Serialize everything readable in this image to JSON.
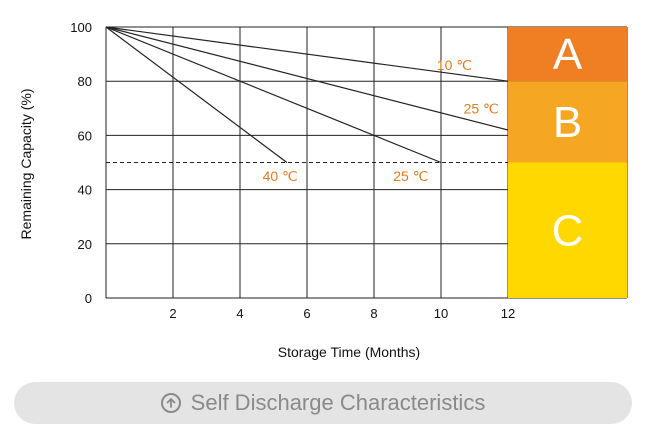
{
  "chart_data": {
    "type": "line",
    "xlabel": "Storage Time (Months)",
    "ylabel": "Remaining Capacity (%)",
    "xlim": [
      0,
      12
    ],
    "ylim": [
      0,
      100
    ],
    "x_ticks": [
      "2",
      "4",
      "6",
      "8",
      "10",
      "12"
    ],
    "y_ticks": [
      "0",
      "20",
      "40",
      "60",
      "80",
      "100"
    ],
    "grid": true,
    "reference_line": {
      "y": 50,
      "style": "dashed"
    },
    "series": [
      {
        "name": "10 ℃",
        "points": [
          [
            0,
            100
          ],
          [
            12,
            80
          ]
        ]
      },
      {
        "name": "25 ℃",
        "points": [
          [
            0,
            100
          ],
          [
            12,
            62
          ]
        ]
      },
      {
        "name": "25 ℃",
        "points": [
          [
            0,
            100
          ],
          [
            10,
            50
          ]
        ]
      },
      {
        "name": "40 ℃",
        "points": [
          [
            0,
            100
          ],
          [
            5.4,
            50
          ]
        ]
      }
    ],
    "annotations": [
      {
        "text": "10 ℃",
        "x": 10.4,
        "y": 86
      },
      {
        "text": "25 ℃",
        "x": 11.2,
        "y": 70
      },
      {
        "text": "40 ℃",
        "x": 5.2,
        "y": 45
      },
      {
        "text": "25 ℃",
        "x": 9.1,
        "y": 45
      }
    ],
    "zones": [
      {
        "label": "A",
        "y_from": 80,
        "y_to": 100,
        "color": "#f07f23"
      },
      {
        "label": "B",
        "y_from": 50,
        "y_to": 80,
        "color": "#f5a623"
      },
      {
        "label": "C",
        "y_from": 0,
        "y_to": 50,
        "color": "#ffd800"
      }
    ],
    "annotation_color": "#e07b1f"
  },
  "caption": {
    "icon": "circle-arrow-up-icon",
    "label": "Self Discharge Characteristics"
  }
}
